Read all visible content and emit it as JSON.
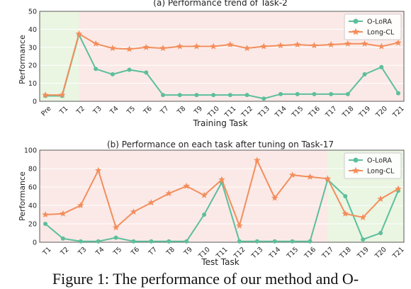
{
  "caption": "Figure 1: The performance of our method and O-",
  "chart_data": [
    {
      "type": "line",
      "title": "(a) Performance trend of Task-2",
      "xlabel": "Training Task",
      "ylabel": "Performance",
      "categories": [
        "Pre",
        "T1",
        "T2",
        "T3",
        "T4",
        "T5",
        "T6",
        "T7",
        "T8",
        "T9",
        "T10",
        "T11",
        "T12",
        "T13",
        "T14",
        "T15",
        "T16",
        "T17",
        "T18",
        "T19",
        "T20",
        "T21"
      ],
      "ylim": [
        0,
        50
      ],
      "yticks": [
        "0",
        "10",
        "20",
        "30",
        "40",
        "50"
      ],
      "legend_position": "top-right",
      "shaded_regions": [
        {
          "from": "Pre",
          "to": "T2",
          "color": "#eaf5e2"
        },
        {
          "from": "T2",
          "to": "T21",
          "color": "#fbe9e7"
        }
      ],
      "series": [
        {
          "name": "O-LoRA",
          "color": "#5cbf9c",
          "marker": "circle",
          "values": [
            3,
            3,
            37,
            18,
            15,
            17.5,
            16,
            3.5,
            3.5,
            3.5,
            3.5,
            3.5,
            3.5,
            1.5,
            4,
            4,
            4,
            4,
            4,
            15,
            19,
            4.5
          ]
        },
        {
          "name": "Long-CL",
          "color": "#f38e5c",
          "marker": "star",
          "values": [
            3.5,
            3.5,
            37.5,
            32,
            29.5,
            29,
            30,
            29.5,
            30.5,
            30.5,
            30.5,
            31.5,
            29.5,
            30.5,
            31,
            31.5,
            31,
            31.5,
            32,
            32,
            30.5,
            32.5
          ]
        }
      ]
    },
    {
      "type": "line",
      "title": "(b) Performance on each task after tuning on Task-17",
      "xlabel": "Test Task",
      "ylabel": "Performance",
      "categories": [
        "T1",
        "T2",
        "T3",
        "T4",
        "T5",
        "T6",
        "T7",
        "T8",
        "T9",
        "T10",
        "T11",
        "T12",
        "T13",
        "T14",
        "T15",
        "T16",
        "T17",
        "T18",
        "T19",
        "T20",
        "T21"
      ],
      "ylim": [
        0,
        100
      ],
      "yticks": [
        "0",
        "20",
        "40",
        "60",
        "80",
        "100"
      ],
      "legend_position": "top-right",
      "shaded_regions": [
        {
          "from": "T1",
          "to": "T17",
          "color": "#fbe9e7"
        },
        {
          "from": "T17",
          "to": "T21",
          "color": "#eaf5e2"
        }
      ],
      "series": [
        {
          "name": "O-LoRA",
          "color": "#5cbf9c",
          "marker": "circle",
          "values": [
            20,
            4,
            1,
            1,
            5,
            1,
            1,
            1,
            1,
            30,
            65,
            1,
            1,
            1,
            1,
            1,
            68,
            50,
            3,
            10,
            56
          ]
        },
        {
          "name": "Long-CL",
          "color": "#f38e5c",
          "marker": "star",
          "values": [
            30,
            31,
            40,
            78,
            16,
            33,
            43,
            53,
            61,
            51,
            68,
            18,
            89,
            48,
            73,
            71,
            69,
            31,
            27,
            47,
            58
          ]
        }
      ]
    }
  ]
}
